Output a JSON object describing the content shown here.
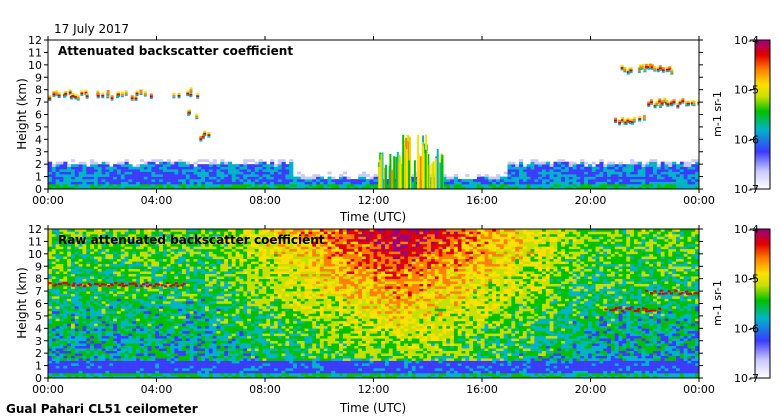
{
  "date": "17 July 2017",
  "instrument": "Gual Pahari CL51 ceilometer",
  "colorbar": {
    "tick_labels": [
      "10-7",
      "10-6",
      "10-5",
      "10-4"
    ],
    "label": "m-1 sr-1",
    "colors": [
      "#ffffff",
      "#c9c9ff",
      "#3b3bff",
      "#00b4c8",
      "#00c000",
      "#c8e000",
      "#ffe000",
      "#ff8000",
      "#e00000",
      "#9a0080"
    ]
  },
  "chart_data": [
    {
      "type": "heatmap",
      "title": "Attenuated backscatter coefficient",
      "xlabel": "Time (UTC)",
      "ylabel": "Height (km)",
      "xlim": [
        0,
        24
      ],
      "ylim": [
        0,
        12
      ],
      "xticks": [
        "00:00",
        "04:00",
        "08:00",
        "12:00",
        "16:00",
        "20:00",
        "00:00"
      ],
      "yticks": [
        "0",
        "1",
        "2",
        "3",
        "4",
        "5",
        "6",
        "7",
        "8",
        "9",
        "10",
        "11",
        "12"
      ],
      "colorscale_range": [
        1e-07,
        0.0001
      ],
      "features": {
        "boundary_layer_top_km": 2.0,
        "cloud_layers": [
          {
            "start_h": 0.0,
            "end_h": 3.8,
            "height_km": 7.6
          },
          {
            "start_h": 4.5,
            "end_h": 5.5,
            "height_km": 7.8
          },
          {
            "start_h": 5.0,
            "end_h": 5.5,
            "height_km": 6.1
          },
          {
            "start_h": 5.5,
            "end_h": 5.9,
            "height_km": 4.3
          },
          {
            "start_h": 20.8,
            "end_h": 22.0,
            "height_km": 5.6
          },
          {
            "start_h": 21.0,
            "end_h": 23.0,
            "height_km": 9.7
          },
          {
            "start_h": 22.0,
            "end_h": 24.0,
            "height_km": 7.0
          }
        ],
        "convective_plumes": [
          {
            "center_h": 12.6,
            "top_km": 3.0
          },
          {
            "center_h": 13.5,
            "top_km": 4.5
          },
          {
            "center_h": 14.1,
            "top_km": 3.8
          }
        ]
      }
    },
    {
      "type": "heatmap",
      "title": "Raw attenuated backscatter coefficient",
      "xlabel": "Time (UTC)",
      "ylabel": "Height (km)",
      "xlim": [
        0,
        24
      ],
      "ylim": [
        0,
        12
      ],
      "xticks": [
        "00:00",
        "04:00",
        "08:00",
        "12:00",
        "16:00",
        "20:00",
        "00:00"
      ],
      "yticks": [
        "0",
        "1",
        "2",
        "3",
        "4",
        "5",
        "6",
        "7",
        "8",
        "9",
        "10",
        "11",
        "12"
      ],
      "colorscale_range": [
        1e-07,
        0.0001
      ],
      "features": {
        "noise_max_window_h": [
          8.0,
          18.0
        ],
        "near_surface_layer_top_km": 1.5,
        "cloud_layers": [
          {
            "start_h": 0.0,
            "end_h": 5.0,
            "height_km": 7.6
          },
          {
            "start_h": 20.5,
            "end_h": 22.5,
            "height_km": 5.6
          },
          {
            "start_h": 22.0,
            "end_h": 24.0,
            "height_km": 7.0
          }
        ]
      }
    }
  ]
}
